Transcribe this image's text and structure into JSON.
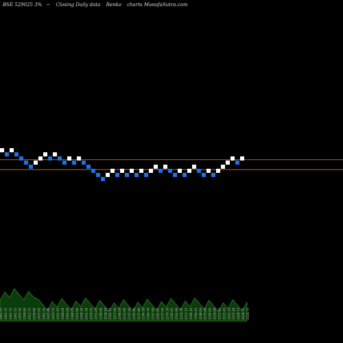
{
  "header": {
    "symbol": "BSE 529025 3%",
    "arrow": "~",
    "desc1": "Closing Daily data",
    "desc2": "Renko",
    "desc3": "charts MunafaSutra.com"
  },
  "chart_data": {
    "type": "renko",
    "title": "BSE 529025 3% ~ Closing Daily data Renko charts MunafaSutra.com",
    "bricks": [
      {
        "level": 0,
        "dir": "up"
      },
      {
        "level": -1,
        "dir": "down"
      },
      {
        "level": 0,
        "dir": "up"
      },
      {
        "level": -1,
        "dir": "down"
      },
      {
        "level": -2,
        "dir": "down"
      },
      {
        "level": -3,
        "dir": "down"
      },
      {
        "level": -4,
        "dir": "down"
      },
      {
        "level": -3,
        "dir": "up"
      },
      {
        "level": -2,
        "dir": "up"
      },
      {
        "level": -1,
        "dir": "up"
      },
      {
        "level": -2,
        "dir": "down"
      },
      {
        "level": -1,
        "dir": "up"
      },
      {
        "level": -2,
        "dir": "down"
      },
      {
        "level": -3,
        "dir": "down"
      },
      {
        "level": -2,
        "dir": "up"
      },
      {
        "level": -3,
        "dir": "down"
      },
      {
        "level": -2,
        "dir": "up"
      },
      {
        "level": -3,
        "dir": "down"
      },
      {
        "level": -4,
        "dir": "down"
      },
      {
        "level": -5,
        "dir": "down"
      },
      {
        "level": -6,
        "dir": "down"
      },
      {
        "level": -7,
        "dir": "down"
      },
      {
        "level": -6,
        "dir": "up"
      },
      {
        "level": -5,
        "dir": "up"
      },
      {
        "level": -6,
        "dir": "down"
      },
      {
        "level": -5,
        "dir": "up"
      },
      {
        "level": -6,
        "dir": "down"
      },
      {
        "level": -5,
        "dir": "up"
      },
      {
        "level": -6,
        "dir": "down"
      },
      {
        "level": -5,
        "dir": "up"
      },
      {
        "level": -6,
        "dir": "down"
      },
      {
        "level": -5,
        "dir": "up"
      },
      {
        "level": -4,
        "dir": "up"
      },
      {
        "level": -5,
        "dir": "down"
      },
      {
        "level": -4,
        "dir": "up"
      },
      {
        "level": -5,
        "dir": "down"
      },
      {
        "level": -6,
        "dir": "down"
      },
      {
        "level": -5,
        "dir": "up"
      },
      {
        "level": -6,
        "dir": "down"
      },
      {
        "level": -5,
        "dir": "up"
      },
      {
        "level": -4,
        "dir": "up"
      },
      {
        "level": -5,
        "dir": "down"
      },
      {
        "level": -6,
        "dir": "down"
      },
      {
        "level": -5,
        "dir": "up"
      },
      {
        "level": -6,
        "dir": "down"
      },
      {
        "level": -5,
        "dir": "up"
      },
      {
        "level": -4,
        "dir": "up"
      },
      {
        "level": -3,
        "dir": "up"
      },
      {
        "level": -2,
        "dir": "up"
      },
      {
        "level": -3,
        "dir": "down"
      },
      {
        "level": -2,
        "dir": "up"
      }
    ],
    "reference_lines": [
      {
        "level": -2.3,
        "color": "#b8641e"
      },
      {
        "level": -4.7,
        "color": "#b8641e"
      }
    ],
    "bottom_labels": [
      "2461.55",
      "2461.55",
      "2461.55",
      "2461.55",
      "2451.50",
      "2399.00",
      "2412.75",
      "2436.60",
      "2457.95",
      "2461.25",
      "2425.00",
      "2453.55",
      "2451.55",
      "2389.60",
      "2364.00",
      "2380.65",
      "2374.00",
      "2350.50",
      "2341.50",
      "2278.65",
      "2251.05",
      "2190.60",
      "2228.50",
      "2181.70",
      "2217.00",
      "2190.60",
      "2141.60",
      "2147.40",
      "2165.00",
      "2147.80",
      "2194.50",
      "2164.70",
      "2157.60",
      "2181.85",
      "2177.65",
      "2176.10",
      "2195.65",
      "2191.90",
      "2174.70",
      "2211.75",
      "2196.35",
      "2194.45",
      "2198.04",
      "2175.80",
      "2165.85",
      "2220.00",
      "2215.40",
      "2225.45",
      "2241.15",
      "2372.40",
      "2428.75",
      "2428.75",
      "2428.75"
    ],
    "colors": {
      "up": "#ffffff",
      "down": "#1f6fe5",
      "background": "#000000",
      "volume_fill": "#0a3d0a",
      "volume_line": "#2e8b2e",
      "label": "#bbbbbb"
    }
  }
}
